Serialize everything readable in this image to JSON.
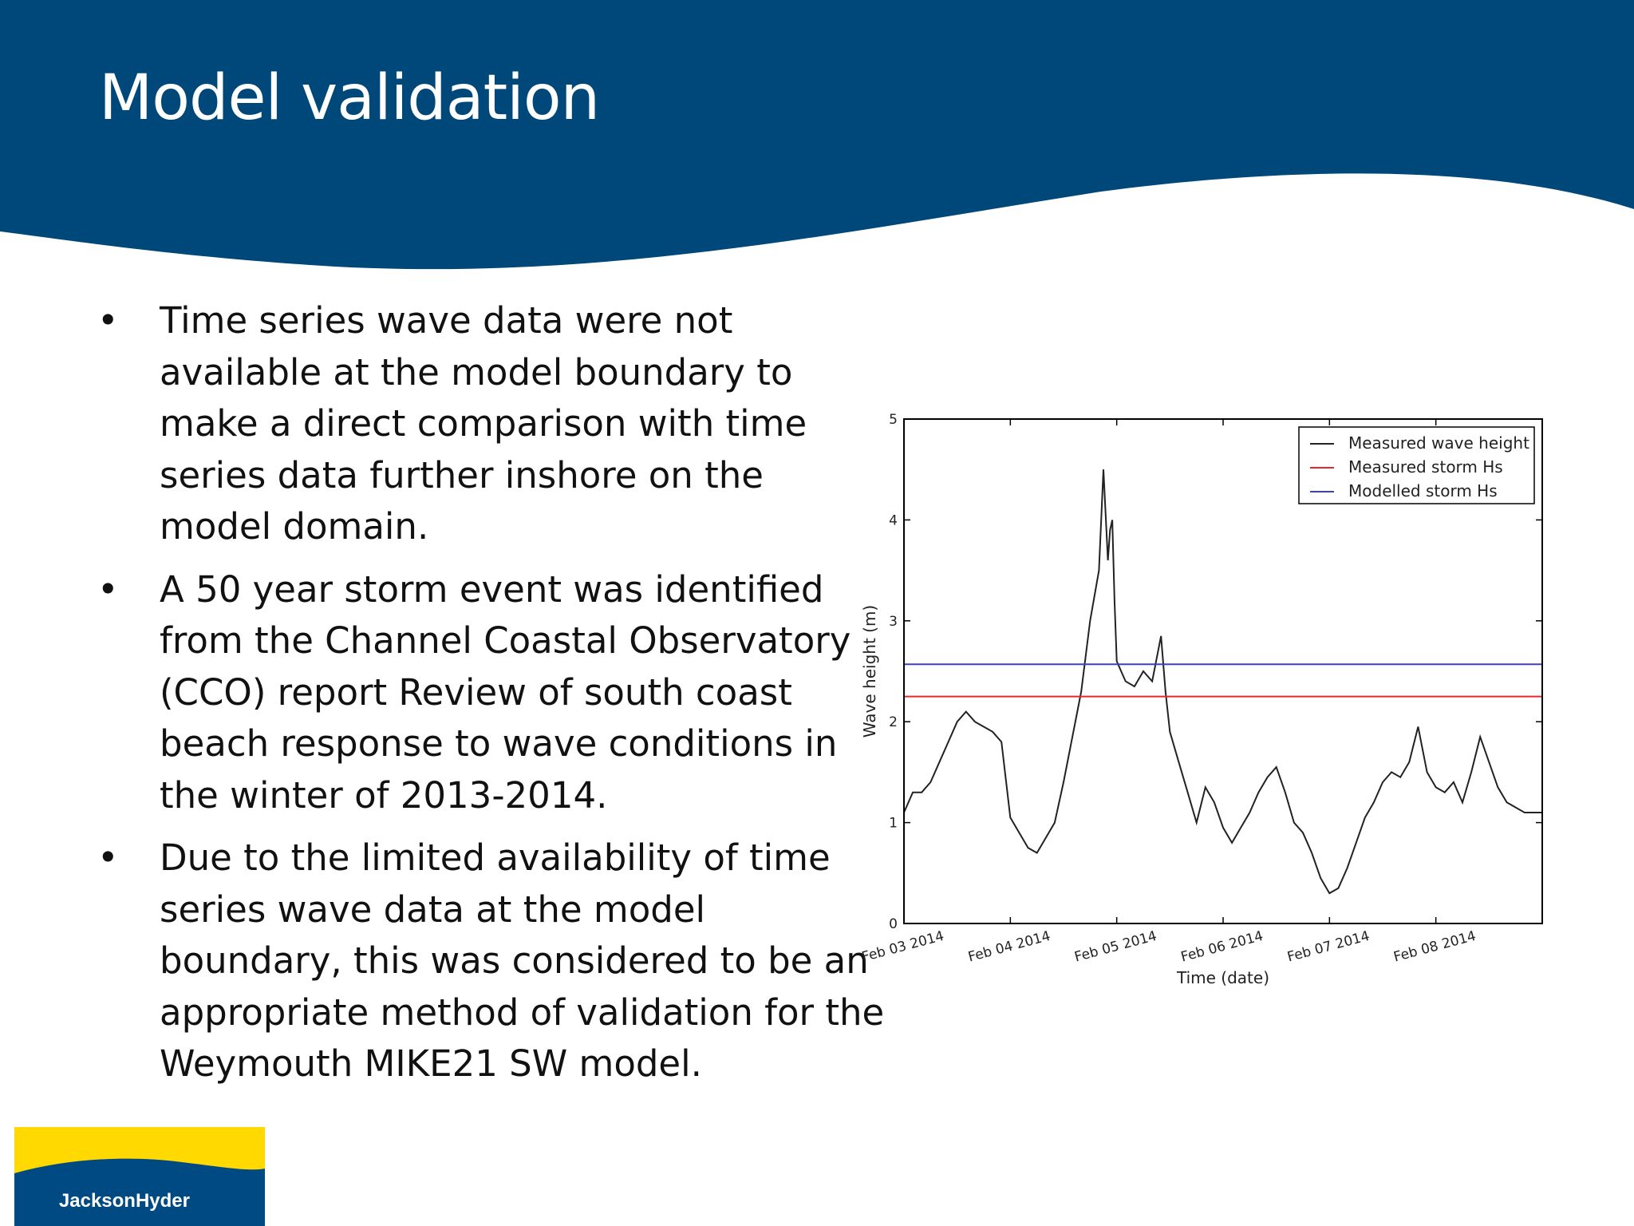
{
  "slide": {
    "title": "Model validation",
    "bullets": [
      "Time series wave data were not available at the model boundary to make a direct comparison with time series data further inshore on the model domain.",
      "A 50 year storm event was identified from the Channel Coastal Observatory (CCO) report Review of south coast beach response to wave conditions in the winter of 2013-2014.",
      "Due to the limited availability of time series wave data at the model boundary, this was considered to be an appropriate method of validation for the Weymouth MIKE21 SW model."
    ],
    "bullet_glyph": "•"
  },
  "colors": {
    "header_blue": "#00477a",
    "logo_yellow": "#ffd900",
    "logo_blue": "#004a84",
    "measured_color": "#222222",
    "measured_storm_color": "#e8262c",
    "modelled_storm_color": "#3b40c7"
  },
  "logo": {
    "text": "JacksonHyder"
  },
  "chart_data": {
    "type": "line",
    "title": "",
    "xlabel": "Time (date)",
    "ylabel": "Wave height (m)",
    "xlim": [
      "2014-02-03T00:00",
      "2014-02-09T00:00"
    ],
    "ylim": [
      0,
      5
    ],
    "y_ticks": [
      0,
      1,
      2,
      3,
      4,
      5
    ],
    "x_tick_labels": [
      "Feb 03 2014",
      "Feb 04 2014",
      "Feb 05 2014",
      "Feb 06 2014",
      "Feb 07 2014",
      "Feb 08 2014"
    ],
    "grid": false,
    "legend_position": "top-right",
    "series": [
      {
        "name": "Measured wave height",
        "color": "#222222",
        "x": [
          "2014-02-03T00:00",
          "2014-02-03T02:00",
          "2014-02-03T04:00",
          "2014-02-03T06:00",
          "2014-02-03T08:00",
          "2014-02-03T10:00",
          "2014-02-03T12:00",
          "2014-02-03T14:00",
          "2014-02-03T16:00",
          "2014-02-03T18:00",
          "2014-02-03T20:00",
          "2014-02-03T22:00",
          "2014-02-04T00:00",
          "2014-02-04T02:00",
          "2014-02-04T04:00",
          "2014-02-04T06:00",
          "2014-02-04T08:00",
          "2014-02-04T10:00",
          "2014-02-04T12:00",
          "2014-02-04T14:00",
          "2014-02-04T16:00",
          "2014-02-04T18:00",
          "2014-02-04T20:00",
          "2014-02-04T21:00",
          "2014-02-04T22:00",
          "2014-02-04T22:30",
          "2014-02-04T23:00",
          "2014-02-04T23:30",
          "2014-02-05T00:00",
          "2014-02-05T01:00",
          "2014-02-05T02:00",
          "2014-02-05T04:00",
          "2014-02-05T06:00",
          "2014-02-05T08:00",
          "2014-02-05T10:00",
          "2014-02-05T11:00",
          "2014-02-05T12:00",
          "2014-02-05T14:00",
          "2014-02-05T16:00",
          "2014-02-05T18:00",
          "2014-02-05T20:00",
          "2014-02-05T22:00",
          "2014-02-06T00:00",
          "2014-02-06T02:00",
          "2014-02-06T04:00",
          "2014-02-06T06:00",
          "2014-02-06T08:00",
          "2014-02-06T10:00",
          "2014-02-06T12:00",
          "2014-02-06T14:00",
          "2014-02-06T16:00",
          "2014-02-06T18:00",
          "2014-02-06T20:00",
          "2014-02-06T22:00",
          "2014-02-07T00:00",
          "2014-02-07T02:00",
          "2014-02-07T04:00",
          "2014-02-07T06:00",
          "2014-02-07T08:00",
          "2014-02-07T10:00",
          "2014-02-07T12:00",
          "2014-02-07T14:00",
          "2014-02-07T16:00",
          "2014-02-07T18:00",
          "2014-02-07T20:00",
          "2014-02-07T22:00",
          "2014-02-08T00:00",
          "2014-02-08T02:00",
          "2014-02-08T04:00",
          "2014-02-08T06:00",
          "2014-02-08T08:00",
          "2014-02-08T10:00",
          "2014-02-08T12:00",
          "2014-02-08T14:00",
          "2014-02-08T16:00",
          "2014-02-08T18:00",
          "2014-02-08T20:00",
          "2014-02-08T22:00",
          "2014-02-09T00:00"
        ],
        "y": [
          1.1,
          1.3,
          1.3,
          1.4,
          1.6,
          1.8,
          2.0,
          2.1,
          2.0,
          1.95,
          1.9,
          1.8,
          1.05,
          0.9,
          0.75,
          0.7,
          0.85,
          1.0,
          1.4,
          1.85,
          2.3,
          3.0,
          3.5,
          4.5,
          3.6,
          3.9,
          4.0,
          3.2,
          2.6,
          2.5,
          2.4,
          2.35,
          2.5,
          2.4,
          2.85,
          2.3,
          1.9,
          1.6,
          1.3,
          1.0,
          1.35,
          1.2,
          0.95,
          0.8,
          0.95,
          1.1,
          1.3,
          1.45,
          1.55,
          1.3,
          1.0,
          0.9,
          0.7,
          0.45,
          0.3,
          0.35,
          0.55,
          0.8,
          1.05,
          1.2,
          1.4,
          1.5,
          1.45,
          1.6,
          1.95,
          1.5,
          1.35,
          1.3,
          1.4,
          1.2,
          1.5,
          1.85,
          1.6,
          1.35,
          1.2,
          1.15,
          1.1,
          1.1,
          1.1
        ]
      },
      {
        "name": "Measured storm Hs",
        "color": "#e8262c",
        "x": [
          "2014-02-03T00:00",
          "2014-02-09T00:00"
        ],
        "y": [
          2.25,
          2.25
        ]
      },
      {
        "name": "Modelled storm Hs",
        "color": "#3b40c7",
        "x": [
          "2014-02-03T00:00",
          "2014-02-09T00:00"
        ],
        "y": [
          2.57,
          2.57
        ]
      }
    ]
  }
}
